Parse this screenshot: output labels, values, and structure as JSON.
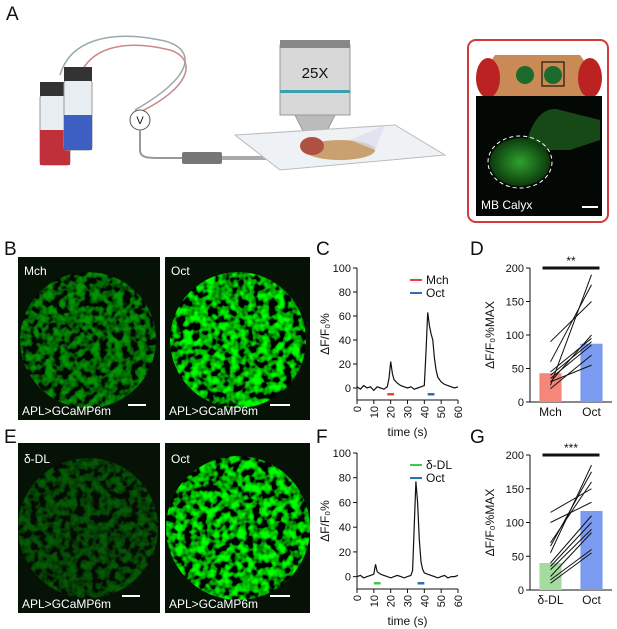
{
  "panel_labels": [
    "A",
    "B",
    "C",
    "D",
    "E",
    "F",
    "G"
  ],
  "illustration": {
    "voltmeter": "V",
    "objective": "25X",
    "inset_label": "MB Calyx"
  },
  "images": [
    {
      "odor": "Mch",
      "genotype": "APL>GCaMP6m"
    },
    {
      "odor": "Oct",
      "genotype": "APL>GCaMP6m"
    },
    {
      "odor": "δ-DL",
      "genotype": "APL>GCaMP6m"
    },
    {
      "odor": "Oct",
      "genotype": "APL>GCaMP6m"
    }
  ],
  "chart_data": [
    {
      "type": "line",
      "x": [
        0,
        2,
        4,
        6,
        8,
        10,
        12,
        14,
        16,
        18,
        19,
        20,
        21,
        22,
        24,
        26,
        28,
        30,
        32,
        34,
        36,
        38,
        40,
        41,
        42,
        43,
        44,
        45,
        46,
        47,
        48,
        50,
        52,
        54,
        56,
        58,
        60
      ],
      "values": [
        1,
        -1,
        2,
        0,
        1,
        -2,
        1,
        0,
        -1,
        1,
        8,
        22,
        12,
        7,
        4,
        2,
        1,
        0,
        1,
        -1,
        0,
        1,
        2,
        30,
        63,
        52,
        45,
        40,
        25,
        15,
        9,
        5,
        3,
        2,
        1,
        0,
        1
      ],
      "color": "#111111",
      "stimuli": [
        {
          "name": "Mch",
          "color": "#e8453c",
          "start": 18,
          "end": 22
        },
        {
          "name": "Oct",
          "color": "#2f6db5",
          "start": 42,
          "end": 46
        }
      ],
      "x_label": "time (s)",
      "y_label": "ΔF/F₀%",
      "xlim": [
        0,
        60
      ],
      "xticks": [
        0,
        10,
        20,
        30,
        40,
        50,
        60
      ],
      "ylim": [
        -10,
        100
      ],
      "yticks": [
        0,
        20,
        40,
        60,
        80,
        100
      ]
    },
    {
      "type": "bar",
      "categories": [
        "Mch",
        "Oct"
      ],
      "values": [
        43,
        87
      ],
      "colors": [
        "#f4877a",
        "#7b9bf0"
      ],
      "pairs": [
        [
          25,
          190
        ],
        [
          60,
          175
        ],
        [
          90,
          150
        ],
        [
          30,
          100
        ],
        [
          45,
          95
        ],
        [
          40,
          90
        ],
        [
          35,
          85
        ],
        [
          20,
          70
        ],
        [
          30,
          55
        ]
      ],
      "y_label": "ΔF/F₀%MAX",
      "ylim": [
        0,
        200
      ],
      "yticks": [
        0,
        50,
        100,
        150,
        200
      ],
      "significance": "**"
    },
    {
      "type": "line",
      "x": [
        0,
        2,
        4,
        6,
        8,
        10,
        11,
        12,
        14,
        16,
        18,
        20,
        22,
        24,
        26,
        28,
        30,
        32,
        33,
        34,
        35,
        36,
        37,
        38,
        39,
        40,
        42,
        44,
        46,
        48,
        50,
        52,
        54,
        56,
        58,
        60
      ],
      "values": [
        0,
        1,
        -1,
        0,
        1,
        2,
        10,
        4,
        2,
        1,
        0,
        -1,
        0,
        1,
        0,
        -1,
        0,
        1,
        5,
        40,
        77,
        60,
        30,
        12,
        6,
        3,
        2,
        1,
        0,
        -1,
        0,
        1,
        -1,
        0,
        0,
        1
      ],
      "color": "#111111",
      "stimuli": [
        {
          "name": "δ-DL",
          "color": "#3ec65a",
          "start": 10,
          "end": 14
        },
        {
          "name": "Oct",
          "color": "#2f6db5",
          "start": 36,
          "end": 40
        }
      ],
      "x_label": "time (s)",
      "y_label": "ΔF/F₀%",
      "xlim": [
        0,
        60
      ],
      "xticks": [
        0,
        10,
        20,
        30,
        40,
        50,
        60
      ],
      "ylim": [
        -10,
        100
      ],
      "yticks": [
        0,
        20,
        40,
        60,
        80,
        100
      ]
    },
    {
      "type": "bar",
      "categories": [
        "δ-DL",
        "Oct"
      ],
      "values": [
        40,
        117
      ],
      "colors": [
        "#a4dca0",
        "#7b9bf0"
      ],
      "pairs": [
        [
          55,
          185
        ],
        [
          65,
          175
        ],
        [
          70,
          160
        ],
        [
          115,
          150
        ],
        [
          100,
          130
        ],
        [
          40,
          110
        ],
        [
          35,
          100
        ],
        [
          30,
          90
        ],
        [
          20,
          85
        ],
        [
          15,
          60
        ],
        [
          10,
          55
        ]
      ],
      "y_label": "ΔF/F₀%MAX",
      "ylim": [
        0,
        200
      ],
      "yticks": [
        0,
        50,
        100,
        150,
        200
      ],
      "significance": "***"
    }
  ]
}
